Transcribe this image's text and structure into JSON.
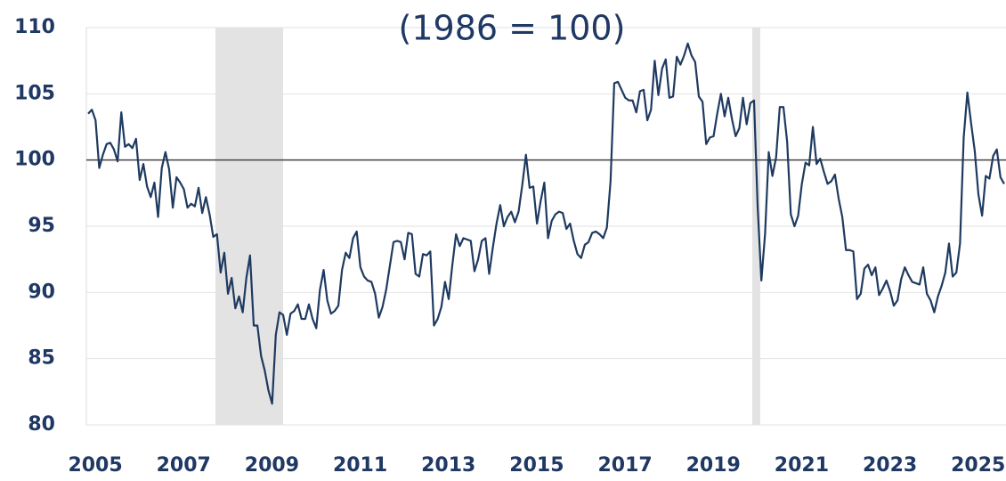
{
  "chart_data": {
    "type": "line",
    "subtitle": "(1986 = 100)",
    "categories": [
      "2005",
      null,
      null,
      null,
      null,
      null,
      null,
      null,
      null,
      null,
      null,
      null,
      null,
      null,
      null,
      null,
      null,
      null,
      null,
      null,
      null,
      null,
      null,
      null,
      "2007",
      null,
      null,
      null,
      null,
      null,
      null,
      null,
      null,
      null,
      null,
      null,
      null,
      null,
      null,
      null,
      null,
      null,
      null,
      null,
      null,
      null,
      null,
      null,
      "2009",
      null,
      null,
      null,
      null,
      null,
      null,
      null,
      null,
      null,
      null,
      null,
      null,
      null,
      null,
      null,
      null,
      null,
      null,
      null,
      null,
      null,
      null,
      null,
      "2011",
      null,
      null,
      null,
      null,
      null,
      null,
      null,
      null,
      null,
      null,
      null,
      null,
      null,
      null,
      null,
      null,
      null,
      null,
      null,
      null,
      null,
      null,
      null,
      "2013",
      null,
      null,
      null,
      null,
      null,
      null,
      null,
      null,
      null,
      null,
      null,
      null,
      null,
      null,
      null,
      null,
      null,
      null,
      null,
      null,
      null,
      null,
      null,
      "2015",
      null,
      null,
      null,
      null,
      null,
      null,
      null,
      null,
      null,
      null,
      null,
      null,
      null,
      null,
      null,
      null,
      null,
      null,
      null,
      null,
      null,
      null,
      null,
      "2017",
      null,
      null,
      null,
      null,
      null,
      null,
      null,
      null,
      null,
      null,
      null,
      null,
      null,
      null,
      null,
      null,
      null,
      null,
      null,
      null,
      null,
      null,
      null,
      "2019",
      null,
      null,
      null,
      null,
      null,
      null,
      null,
      null,
      null,
      null,
      null,
      null,
      null,
      null,
      null,
      null,
      null,
      null,
      null,
      null,
      null,
      null,
      null,
      "2021",
      null,
      null,
      null,
      null,
      null,
      null,
      null,
      null,
      null,
      null,
      null,
      null,
      null,
      null,
      null,
      null,
      null,
      null,
      null,
      null,
      null,
      null,
      null,
      "2023",
      null,
      null,
      null,
      null,
      null,
      null,
      null,
      null,
      null,
      null,
      null,
      null,
      null,
      null,
      null,
      null,
      null,
      null,
      null,
      null,
      null,
      null,
      null,
      "2025",
      null,
      null,
      null,
      null,
      null,
      null,
      null,
      null,
      null
    ],
    "values": [
      103.5,
      103.8,
      103.0,
      99.4,
      100.4,
      101.2,
      101.3,
      100.8,
      99.9,
      103.6,
      101.0,
      101.2,
      100.9,
      101.6,
      98.5,
      99.7,
      98.0,
      97.2,
      98.3,
      95.7,
      99.4,
      100.6,
      99.3,
      96.4,
      98.7,
      98.3,
      97.8,
      96.4,
      96.7,
      96.5,
      97.9,
      96.0,
      97.2,
      95.9,
      94.2,
      94.4,
      91.5,
      93.0,
      89.9,
      91.1,
      88.8,
      89.7,
      88.5,
      91.1,
      92.8,
      87.5,
      87.5,
      85.2,
      84.1,
      82.6,
      81.6,
      86.8,
      88.5,
      88.3,
      86.8,
      88.4,
      88.6,
      89.1,
      88.0,
      88.0,
      89.1,
      88.0,
      87.3,
      90.2,
      91.7,
      89.4,
      88.4,
      88.6,
      89.0,
      91.7,
      93.0,
      92.6,
      94.1,
      94.6,
      91.9,
      91.2,
      90.9,
      90.8,
      89.9,
      88.1,
      88.9,
      90.2,
      92.0,
      93.8,
      93.9,
      93.8,
      92.5,
      94.5,
      94.4,
      91.4,
      91.2,
      92.9,
      92.8,
      93.1,
      87.5,
      88.0,
      88.9,
      90.8,
      89.5,
      92.1,
      94.4,
      93.5,
      94.1,
      94.0,
      93.9,
      91.6,
      92.5,
      93.9,
      94.1,
      91.4,
      93.4,
      95.2,
      96.6,
      95.0,
      95.7,
      96.1,
      95.3,
      96.1,
      98.1,
      100.4,
      97.9,
      98.0,
      95.2,
      96.9,
      98.3,
      94.1,
      95.4,
      95.9,
      96.1,
      96.0,
      94.8,
      95.2,
      93.9,
      92.9,
      92.6,
      93.6,
      93.8,
      94.5,
      94.6,
      94.4,
      94.1,
      94.9,
      98.4,
      105.8,
      105.9,
      105.3,
      104.7,
      104.5,
      104.5,
      103.6,
      105.2,
      105.3,
      103.0,
      103.8,
      107.5,
      104.9,
      106.9,
      107.6,
      104.7,
      104.8,
      107.8,
      107.2,
      107.9,
      108.8,
      107.9,
      107.4,
      104.8,
      104.4,
      101.2,
      101.7,
      101.8,
      103.5,
      105.0,
      103.3,
      104.7,
      103.1,
      101.8,
      102.4,
      104.7,
      102.7,
      104.3,
      104.5,
      96.4,
      90.9,
      94.4,
      100.6,
      98.8,
      100.2,
      104.0,
      104.0,
      101.4,
      95.9,
      95.0,
      95.8,
      98.2,
      99.8,
      99.6,
      102.5,
      99.7,
      100.1,
      99.1,
      98.2,
      98.4,
      98.9,
      97.1,
      95.7,
      93.2,
      93.2,
      93.1,
      89.5,
      89.9,
      91.8,
      92.1,
      91.3,
      91.9,
      89.8,
      90.3,
      90.9,
      90.1,
      89.0,
      89.4,
      91.0,
      91.9,
      91.3,
      90.8,
      90.7,
      90.6,
      91.9,
      89.9,
      89.4,
      88.5,
      89.7,
      90.5,
      91.5,
      93.7,
      91.2,
      91.5,
      93.7,
      101.7,
      105.1,
      102.8,
      100.7,
      97.4,
      95.8,
      98.8,
      98.6,
      100.3,
      100.8,
      98.7,
      98.2
    ],
    "color": "#1f3a60",
    "reference_line": 100,
    "ylim": [
      80,
      110
    ],
    "yticks": [
      80,
      85,
      90,
      95,
      100,
      105,
      110
    ],
    "grid": true
  }
}
